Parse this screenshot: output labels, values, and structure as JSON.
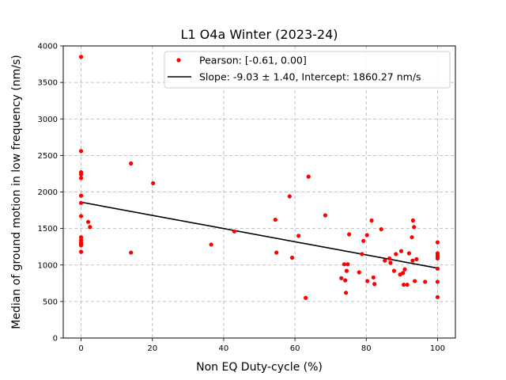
{
  "chart_data": {
    "type": "scatter",
    "title": "L1 O4a Winter (2023-24)",
    "xlabel": "Non EQ Duty-cycle (%)",
    "ylabel": "Median of ground motion in low frequency (nm/s)",
    "xlim": [
      -5,
      105
    ],
    "ylim": [
      0,
      4000
    ],
    "xticks": [
      0,
      20,
      40,
      60,
      80,
      100
    ],
    "yticks": [
      0,
      500,
      1000,
      1500,
      2000,
      2500,
      3000,
      3500,
      4000
    ],
    "grid": true,
    "legend_position": "top-right",
    "colors": {
      "points": "#ff0000",
      "fit_line": "#000000"
    },
    "series": [
      {
        "name": "Pearson: [-0.61, 0.00]",
        "kind": "scatter",
        "points": [
          [
            0,
            3850
          ],
          [
            0,
            2560
          ],
          [
            0,
            2270
          ],
          [
            0,
            2240
          ],
          [
            0,
            2190
          ],
          [
            0,
            1950
          ],
          [
            0,
            1850
          ],
          [
            0,
            1670
          ],
          [
            0,
            1380
          ],
          [
            0,
            1340
          ],
          [
            0,
            1310
          ],
          [
            0,
            1290
          ],
          [
            0,
            1270
          ],
          [
            0,
            1180
          ],
          [
            2,
            1590
          ],
          [
            2.5,
            1520
          ],
          [
            14,
            2390
          ],
          [
            14,
            1170
          ],
          [
            20.2,
            2120
          ],
          [
            36.5,
            1280
          ],
          [
            43,
            1460
          ],
          [
            54.5,
            1620
          ],
          [
            54.8,
            1170
          ],
          [
            58.5,
            1940
          ],
          [
            59.2,
            1100
          ],
          [
            61,
            1400
          ],
          [
            63,
            550
          ],
          [
            63.8,
            2210
          ],
          [
            68.5,
            1680
          ],
          [
            73,
            820
          ],
          [
            73.8,
            1010
          ],
          [
            74.1,
            790
          ],
          [
            74.3,
            620
          ],
          [
            74.5,
            920
          ],
          [
            74.8,
            1010
          ],
          [
            75.2,
            1420
          ],
          [
            78,
            900
          ],
          [
            78.8,
            1150
          ],
          [
            79.2,
            1330
          ],
          [
            80.2,
            1410
          ],
          [
            80.3,
            780
          ],
          [
            81.5,
            1610
          ],
          [
            82,
            830
          ],
          [
            82.3,
            740
          ],
          [
            84.2,
            1490
          ],
          [
            85.2,
            1060
          ],
          [
            86.5,
            1090
          ],
          [
            86.8,
            1030
          ],
          [
            87.8,
            920
          ],
          [
            88.3,
            1150
          ],
          [
            89.5,
            870
          ],
          [
            89.8,
            1190
          ],
          [
            90.3,
            890
          ],
          [
            90.5,
            730
          ],
          [
            90.8,
            940
          ],
          [
            91.5,
            730
          ],
          [
            92,
            1160
          ],
          [
            92.8,
            1380
          ],
          [
            93,
            1060
          ],
          [
            93.1,
            1610
          ],
          [
            93.4,
            1520
          ],
          [
            93.6,
            780
          ],
          [
            94.1,
            1080
          ],
          [
            96.5,
            770
          ],
          [
            100,
            1310
          ],
          [
            100,
            1160
          ],
          [
            100,
            1130
          ],
          [
            100,
            1110
          ],
          [
            100,
            1090
          ],
          [
            100,
            950
          ],
          [
            100,
            770
          ],
          [
            100,
            560
          ]
        ]
      },
      {
        "name": "Slope: -9.03 ± 1.40, Intercept: 1860.27 nm/s",
        "kind": "line",
        "slope": -9.03,
        "intercept": 1860.27,
        "x_range": [
          0,
          100
        ]
      }
    ]
  }
}
